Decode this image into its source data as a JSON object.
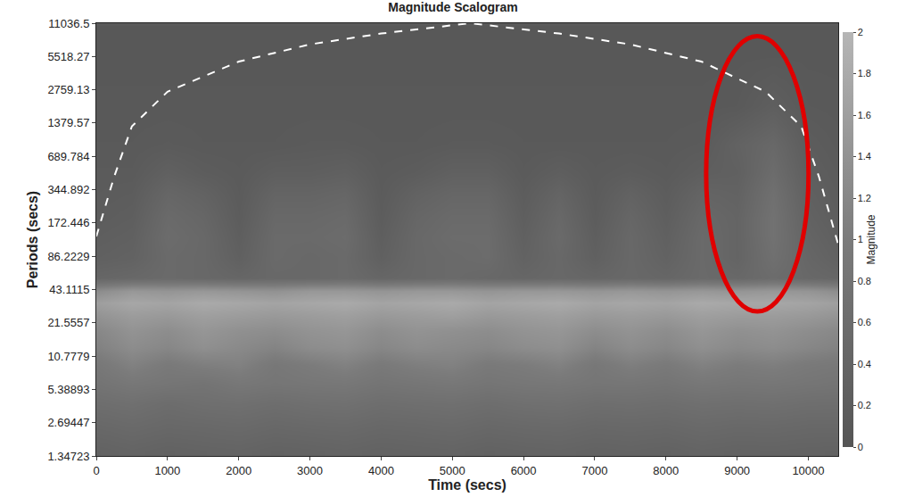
{
  "chart_data": {
    "type": "heatmap",
    "title": "Magnitude Scalogram",
    "x_label": "Time (secs)",
    "y_label": "Periods (secs)",
    "log": "y",
    "x": [
      0,
      500,
      1000,
      1500,
      2000,
      2500,
      3000,
      3500,
      4000,
      4500,
      5000,
      5500,
      6000,
      6500,
      7000,
      7500,
      8000,
      8500,
      9000,
      9500,
      10000,
      10500
    ],
    "y": [
      1.5,
      2.5,
      4,
      6,
      9,
      13,
      18,
      25,
      33,
      42,
      55,
      85,
      130,
      200,
      320,
      500,
      900,
      2000,
      6000
    ],
    "z": [
      [
        0.35,
        0.4,
        0.35,
        0.38,
        0.4,
        0.35,
        0.37,
        0.4,
        0.36,
        0.38,
        0.4,
        0.35,
        0.38,
        0.4,
        0.36,
        0.38,
        0.35,
        0.4,
        0.37,
        0.38,
        0.36,
        0.35
      ],
      [
        0.5,
        0.55,
        0.5,
        0.52,
        0.55,
        0.5,
        0.53,
        0.55,
        0.5,
        0.52,
        0.55,
        0.5,
        0.53,
        0.55,
        0.5,
        0.52,
        0.5,
        0.55,
        0.52,
        0.53,
        0.5,
        0.5
      ],
      [
        0.65,
        0.7,
        0.62,
        0.68,
        0.7,
        0.65,
        0.7,
        0.72,
        0.65,
        0.68,
        0.7,
        0.65,
        0.7,
        0.72,
        0.66,
        0.68,
        0.65,
        0.7,
        0.68,
        0.7,
        0.66,
        0.65
      ],
      [
        0.8,
        0.9,
        0.85,
        0.8,
        0.9,
        0.85,
        0.88,
        0.9,
        0.82,
        0.86,
        0.9,
        0.84,
        0.88,
        0.9,
        0.85,
        0.86,
        0.82,
        0.9,
        0.86,
        0.88,
        0.84,
        0.8
      ],
      [
        0.9,
        1.1,
        0.95,
        1.05,
        1.1,
        0.9,
        1.0,
        1.1,
        0.95,
        1.05,
        1.1,
        0.95,
        1.0,
        1.1,
        0.9,
        1.05,
        0.95,
        1.1,
        1.0,
        1.05,
        0.95,
        0.9
      ],
      [
        1.1,
        1.3,
        1.2,
        1.35,
        1.25,
        1.15,
        1.3,
        1.35,
        1.2,
        1.3,
        1.25,
        1.2,
        1.3,
        1.35,
        1.15,
        1.3,
        1.2,
        1.35,
        1.25,
        1.3,
        1.2,
        1.1
      ],
      [
        1.2,
        1.4,
        1.3,
        1.45,
        1.35,
        1.3,
        1.4,
        1.45,
        1.3,
        1.4,
        1.35,
        1.3,
        1.4,
        1.45,
        1.3,
        1.4,
        1.3,
        1.45,
        1.35,
        1.4,
        1.3,
        1.2
      ],
      [
        1.4,
        1.55,
        1.5,
        1.6,
        1.55,
        1.5,
        1.55,
        1.6,
        1.5,
        1.55,
        1.6,
        1.5,
        1.55,
        1.6,
        1.5,
        1.55,
        1.5,
        1.6,
        1.55,
        1.55,
        1.5,
        1.4
      ],
      [
        1.6,
        1.75,
        1.7,
        1.8,
        1.75,
        1.7,
        1.75,
        1.8,
        1.7,
        1.75,
        1.8,
        1.7,
        1.75,
        1.8,
        1.7,
        1.75,
        1.7,
        1.8,
        1.75,
        1.75,
        1.7,
        1.6
      ],
      [
        1.3,
        1.5,
        1.45,
        1.5,
        1.45,
        1.4,
        1.5,
        1.5,
        1.45,
        1.5,
        1.5,
        1.45,
        1.5,
        1.5,
        1.45,
        1.5,
        1.45,
        1.5,
        1.45,
        1.5,
        1.45,
        1.3
      ],
      [
        0.45,
        0.5,
        0.55,
        0.5,
        0.45,
        0.5,
        0.5,
        0.55,
        0.45,
        0.5,
        0.55,
        0.5,
        0.45,
        0.5,
        0.45,
        0.5,
        0.45,
        0.55,
        0.5,
        0.6,
        0.5,
        0.45
      ],
      [
        0.3,
        0.35,
        0.55,
        0.5,
        0.3,
        0.55,
        0.5,
        0.55,
        0.3,
        0.5,
        0.55,
        0.6,
        0.35,
        0.5,
        0.3,
        0.5,
        0.35,
        0.55,
        0.4,
        0.7,
        0.45,
        0.3
      ],
      [
        0.25,
        0.3,
        0.6,
        0.5,
        0.25,
        0.55,
        0.55,
        0.6,
        0.25,
        0.5,
        0.6,
        0.6,
        0.3,
        0.55,
        0.25,
        0.5,
        0.3,
        0.55,
        0.4,
        0.75,
        0.4,
        0.25
      ],
      [
        0.2,
        0.25,
        0.55,
        0.45,
        0.2,
        0.5,
        0.5,
        0.55,
        0.2,
        0.45,
        0.55,
        0.55,
        0.25,
        0.5,
        0.2,
        0.45,
        0.25,
        0.5,
        0.4,
        0.75,
        0.35,
        0.2
      ],
      [
        0.17,
        0.2,
        0.45,
        0.35,
        0.17,
        0.4,
        0.4,
        0.45,
        0.17,
        0.35,
        0.45,
        0.45,
        0.2,
        0.4,
        0.17,
        0.35,
        0.2,
        0.4,
        0.35,
        0.7,
        0.3,
        0.17
      ],
      [
        0.15,
        0.15,
        0.3,
        0.2,
        0.15,
        0.25,
        0.25,
        0.3,
        0.15,
        0.2,
        0.3,
        0.3,
        0.15,
        0.25,
        0.15,
        0.2,
        0.15,
        0.25,
        0.3,
        0.6,
        0.25,
        0.15
      ],
      [
        0.12,
        0.12,
        0.15,
        0.12,
        0.12,
        0.12,
        0.15,
        0.15,
        0.12,
        0.12,
        0.15,
        0.15,
        0.12,
        0.12,
        0.12,
        0.12,
        0.12,
        0.15,
        0.35,
        0.5,
        0.2,
        0.12
      ],
      [
        0.1,
        0.1,
        0.1,
        0.1,
        0.1,
        0.1,
        0.1,
        0.1,
        0.1,
        0.1,
        0.1,
        0.1,
        0.1,
        0.1,
        0.1,
        0.1,
        0.1,
        0.1,
        0.12,
        0.25,
        0.12,
        0.1
      ],
      [
        0.08,
        0.08,
        0.08,
        0.08,
        0.08,
        0.08,
        0.08,
        0.08,
        0.08,
        0.08,
        0.08,
        0.08,
        0.08,
        0.08,
        0.08,
        0.08,
        0.08,
        0.08,
        0.08,
        0.08,
        0.08,
        0.08
      ]
    ],
    "zlim": [
      0,
      2
    ],
    "zticks": [
      0,
      0.2,
      0.4,
      0.6,
      0.8,
      1,
      1.2,
      1.4,
      1.6,
      1.8,
      2
    ],
    "colorbar_title": "Magnitude",
    "series": [
      {
        "type": "line",
        "color": "#ffffff",
        "line_style": "dash",
        "x": [
          0,
          250,
          500,
          1000,
          2000,
          3000,
          4000,
          5250,
          6500,
          7500,
          8500,
          9400,
          9900,
          10150,
          10420
        ],
        "values": [
          130,
          450,
          1290,
          2650,
          4960,
          7100,
          8900,
          11036.5,
          8900,
          7100,
          4960,
          2650,
          1290,
          450,
          110
        ]
      }
    ],
    "xlim": [
      0,
      10420
    ],
    "xticks": [
      0,
      1000,
      2000,
      3000,
      4000,
      5000,
      6000,
      7000,
      8000,
      9000,
      10000
    ],
    "ylim": [
      1.34723,
      11036.5
    ],
    "yticks": [
      1.34723,
      2.69447,
      5.38893,
      10.7779,
      21.5557,
      43.1115,
      86.2229,
      172.446,
      344.892,
      689.784,
      1379.57,
      2759.13,
      5518.27,
      11036.5
    ]
  }
}
